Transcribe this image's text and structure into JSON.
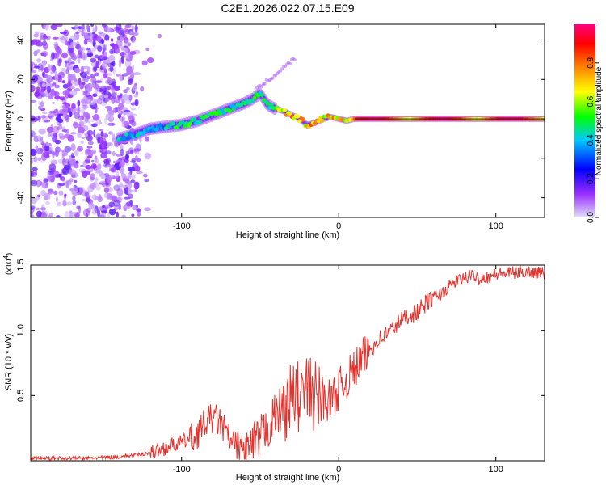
{
  "title": "C2E1.2026.022.07.15.E09",
  "chart_data": [
    {
      "type": "heatmap",
      "name": "spectrogram",
      "xlabel": "Height of straight line (km)",
      "ylabel": "Frequency (Hz)",
      "xlim": [
        -196,
        131
      ],
      "ylim": [
        -50,
        48
      ],
      "x_ticks": [
        -100,
        0,
        100
      ],
      "y_ticks": [
        -40,
        -20,
        0,
        20,
        40
      ],
      "colorbar": {
        "label": "Normalized spectral amplitude",
        "range": [
          0,
          1
        ],
        "ticks": [
          "0.0",
          "0.2",
          "0.4",
          "0.6",
          "0.8"
        ],
        "colormap": [
          "#e0e0f5",
          "#9b30ff",
          "#0000ff",
          "#00c8ff",
          "#00ff00",
          "#ffff00",
          "#ff8000",
          "#ff0000",
          "#ff0080"
        ]
      },
      "ridge_x": [
        -140,
        -130,
        -120,
        -110,
        -100,
        -90,
        -80,
        -70,
        -60,
        -55,
        -50,
        -45,
        -40,
        -35,
        -30,
        -25,
        -20,
        -15,
        -10,
        -5,
        0,
        5,
        10,
        20,
        40,
        60,
        80,
        100,
        120,
        131
      ],
      "ridge_freq": [
        -10,
        -8,
        -5,
        -4,
        -3,
        -1,
        2,
        5,
        8,
        10,
        13,
        7,
        5,
        4,
        2,
        0,
        -3,
        -2,
        0,
        1,
        0,
        -1,
        0,
        0,
        0,
        0,
        0,
        0,
        0,
        0
      ]
    },
    {
      "type": "line",
      "name": "snr",
      "xlabel": "Height of straight line (km)",
      "ylabel": "SNR (10 * v/v)",
      "y_multiplier": "(x10",
      "y_multiplier_exp": "4",
      "y_multiplier_close": ")",
      "xlim": [
        -196,
        131
      ],
      "ylim": [
        0,
        1.5
      ],
      "x_ticks": [
        -100,
        0,
        100
      ],
      "y_ticks": [
        0.5,
        1.0,
        1.5
      ],
      "y_tick_labels": [
        "0.5",
        "1.0",
        "1.5"
      ],
      "series": [
        {
          "name": "SNR",
          "color": "#e8302a",
          "x": [
            -196,
            -180,
            -160,
            -140,
            -125,
            -115,
            -108,
            -100,
            -92,
            -88,
            -84,
            -80,
            -76,
            -72,
            -68,
            -64,
            -60,
            -56,
            -52,
            -48,
            -44,
            -40,
            -36,
            -32,
            -28,
            -24,
            -20,
            -16,
            -12,
            -8,
            -4,
            0,
            5,
            10,
            15,
            20,
            25,
            30,
            35,
            40,
            45,
            50,
            55,
            60,
            65,
            70,
            75,
            80,
            85,
            90,
            95,
            100,
            110,
            120,
            131
          ],
          "y": [
            0.02,
            0.02,
            0.02,
            0.03,
            0.05,
            0.08,
            0.11,
            0.14,
            0.18,
            0.24,
            0.3,
            0.33,
            0.3,
            0.22,
            0.13,
            0.1,
            0.09,
            0.1,
            0.14,
            0.2,
            0.28,
            0.35,
            0.4,
            0.45,
            0.5,
            0.48,
            0.55,
            0.5,
            0.48,
            0.46,
            0.48,
            0.55,
            0.62,
            0.7,
            0.78,
            0.85,
            0.93,
            0.97,
            1.02,
            1.08,
            1.12,
            1.14,
            1.2,
            1.25,
            1.28,
            1.33,
            1.38,
            1.4,
            1.42,
            1.4,
            1.41,
            1.43,
            1.44,
            1.45,
            1.44
          ]
        }
      ]
    }
  ]
}
